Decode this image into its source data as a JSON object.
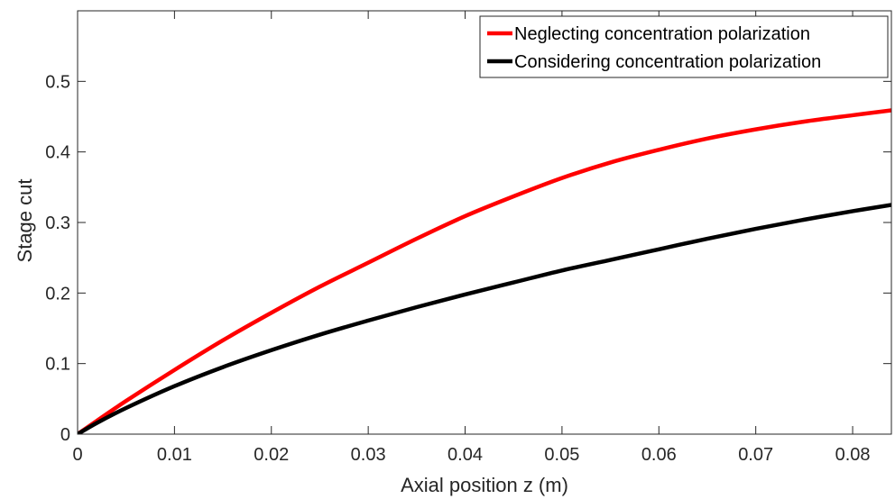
{
  "chart_data": {
    "type": "line",
    "title": "",
    "xlabel": "Axial position z (m)",
    "ylabel": "Stage cut",
    "xlim": [
      0,
      0.084
    ],
    "ylim": [
      0,
      0.6
    ],
    "x_ticks": [
      0,
      0.01,
      0.02,
      0.03,
      0.04,
      0.05,
      0.06,
      0.07,
      0.08
    ],
    "x_tick_labels": [
      "0",
      "0.01",
      "0.02",
      "0.03",
      "0.04",
      "0.05",
      "0.06",
      "0.07",
      "0.08"
    ],
    "y_ticks": [
      0,
      0.1,
      0.2,
      0.3,
      0.4,
      0.5
    ],
    "y_tick_labels": [
      "0",
      "0.1",
      "0.2",
      "0.3",
      "0.4",
      "0.5"
    ],
    "grid": false,
    "legend_position": "top-right",
    "series": [
      {
        "name": "Neglecting concentration polarization",
        "color": "#ff0000",
        "x": [
          0,
          0.002,
          0.005,
          0.01,
          0.015,
          0.02,
          0.025,
          0.03,
          0.035,
          0.04,
          0.045,
          0.05,
          0.055,
          0.06,
          0.065,
          0.07,
          0.075,
          0.08,
          0.084
        ],
        "y": [
          0,
          0.019,
          0.047,
          0.091,
          0.133,
          0.172,
          0.209,
          0.243,
          0.277,
          0.309,
          0.337,
          0.363,
          0.385,
          0.403,
          0.419,
          0.432,
          0.443,
          0.452,
          0.459
        ]
      },
      {
        "name": "Considering concentration polarization",
        "color": "#000000",
        "x": [
          0,
          0.002,
          0.005,
          0.01,
          0.015,
          0.02,
          0.025,
          0.03,
          0.035,
          0.04,
          0.045,
          0.05,
          0.055,
          0.06,
          0.065,
          0.07,
          0.075,
          0.08,
          0.084
        ],
        "y": [
          0,
          0.016,
          0.037,
          0.068,
          0.095,
          0.119,
          0.141,
          0.161,
          0.18,
          0.198,
          0.215,
          0.232,
          0.247,
          0.262,
          0.277,
          0.291,
          0.304,
          0.316,
          0.325
        ]
      }
    ]
  }
}
